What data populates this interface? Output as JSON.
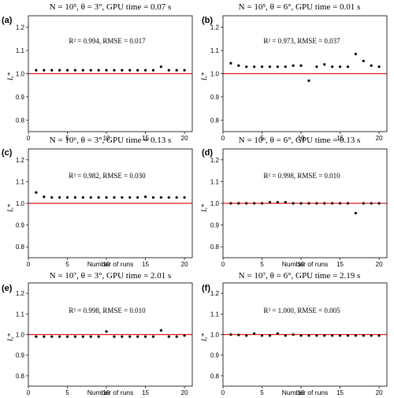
{
  "figure": {
    "panels": [
      {
        "label": "(a)",
        "title": "N = 10⁵, θ = 3°, GPU time = 0.07 s",
        "annotation": "R² = 0.994, RMSE = 0.017",
        "xlabel": "",
        "ylabel": "Iₒ*"
      },
      {
        "label": "(b)",
        "title": "N = 10⁵, θ = 6°, GPU time = 0.01 s",
        "annotation": "R² = 0.973, RMSE = 0.037",
        "xlabel": "",
        "ylabel": "Iₒ*"
      },
      {
        "label": "(c)",
        "title": "N = 10⁶, θ = 3°, GPU time = 0.13 s",
        "annotation": "R² = 0.982, RMSE = 0.030",
        "xlabel": "Number of runs",
        "ylabel": "Iₒ*"
      },
      {
        "label": "(d)",
        "title": "N = 10⁶, θ = 6°, GPU time = 0.13 s",
        "annotation": "R² = 0.998, RMSE = 0.010",
        "xlabel": "Number of runs",
        "ylabel": "Iₒ*"
      },
      {
        "label": "(e)",
        "title": "N = 10⁷, θ = 3°, GPU time = 2.01 s",
        "annotation": "R² = 0.998, RMSE = 0.010",
        "xlabel": "Number of runs",
        "ylabel": "Iₒ*"
      },
      {
        "label": "(f)",
        "title": "N = 10⁷, θ = 6°, GPU time = 2.19 s",
        "annotation": "R² = 1.000, RMSE = 0.005",
        "xlabel": "Number of runs",
        "ylabel": "Iₒ*"
      }
    ],
    "colors": {
      "reference_line": "#e8191c",
      "points": "#000000",
      "axes": "#000000"
    }
  },
  "chart_data": [
    {
      "type": "scatter",
      "title": "N = 10⁵, θ = 3°, GPU time = 0.07 s",
      "xlabel": "",
      "ylabel": "Iₒ*",
      "x": [
        1,
        2,
        3,
        4,
        5,
        6,
        7,
        8,
        9,
        10,
        11,
        12,
        13,
        14,
        15,
        16,
        17,
        18,
        19,
        20
      ],
      "y": [
        1.015,
        1.015,
        1.015,
        1.015,
        1.015,
        1.015,
        1.015,
        1.015,
        1.015,
        1.015,
        1.015,
        1.015,
        1.015,
        1.015,
        1.015,
        1.015,
        1.03,
        1.015,
        1.015,
        1.015
      ],
      "xlim": [
        0,
        21
      ],
      "ylim": [
        0.75,
        1.25
      ],
      "xticks": [
        0,
        5,
        10,
        15,
        20
      ],
      "yticks": [
        0.8,
        0.9,
        1.0,
        1.1,
        1.2
      ],
      "reference_y": 1.0
    },
    {
      "type": "scatter",
      "title": "N = 10⁵, θ = 6°, GPU time = 0.01 s",
      "xlabel": "",
      "ylabel": "Iₒ*",
      "x": [
        1,
        2,
        3,
        4,
        5,
        6,
        7,
        8,
        9,
        10,
        11,
        12,
        13,
        14,
        15,
        16,
        17,
        18,
        19,
        20
      ],
      "y": [
        1.045,
        1.035,
        1.03,
        1.03,
        1.03,
        1.03,
        1.03,
        1.03,
        1.035,
        1.035,
        0.97,
        1.03,
        1.04,
        1.03,
        1.03,
        1.03,
        1.085,
        1.055,
        1.035,
        1.03
      ],
      "xlim": [
        0,
        21
      ],
      "ylim": [
        0.75,
        1.25
      ],
      "xticks": [
        0,
        5,
        10,
        15,
        20
      ],
      "yticks": [
        0.8,
        0.9,
        1.0,
        1.1,
        1.2
      ],
      "reference_y": 1.0
    },
    {
      "type": "scatter",
      "title": "N = 10⁶, θ = 3°, GPU time = 0.13 s",
      "xlabel": "Number of runs",
      "ylabel": "Iₒ*",
      "x": [
        1,
        2,
        3,
        4,
        5,
        6,
        7,
        8,
        9,
        10,
        11,
        12,
        13,
        14,
        15,
        16,
        17,
        18,
        19,
        20
      ],
      "y": [
        1.05,
        1.03,
        1.027,
        1.027,
        1.027,
        1.027,
        1.027,
        1.027,
        1.027,
        1.027,
        1.027,
        1.027,
        1.027,
        1.027,
        1.03,
        1.027,
        1.027,
        1.027,
        1.027,
        1.027
      ],
      "xlim": [
        0,
        21
      ],
      "ylim": [
        0.75,
        1.25
      ],
      "xticks": [
        0,
        5,
        10,
        15,
        20
      ],
      "yticks": [
        0.8,
        0.9,
        1.0,
        1.1,
        1.2
      ],
      "reference_y": 1.0
    },
    {
      "type": "scatter",
      "title": "N = 10⁶, θ = 6°, GPU time = 0.13 s",
      "xlabel": "Number of runs",
      "ylabel": "Iₒ*",
      "x": [
        1,
        2,
        3,
        4,
        5,
        6,
        7,
        8,
        9,
        10,
        11,
        12,
        13,
        14,
        15,
        16,
        17,
        18,
        19,
        20
      ],
      "y": [
        1.0,
        1.0,
        1.0,
        1.0,
        1.0,
        1.005,
        1.005,
        1.005,
        1.0,
        1.0,
        1.0,
        1.0,
        1.0,
        1.0,
        1.0,
        1.0,
        0.955,
        1.0,
        1.0,
        1.0
      ],
      "xlim": [
        0,
        21
      ],
      "ylim": [
        0.75,
        1.25
      ],
      "xticks": [
        0,
        5,
        10,
        15,
        20
      ],
      "yticks": [
        0.8,
        0.9,
        1.0,
        1.1,
        1.2
      ],
      "reference_y": 1.0
    },
    {
      "type": "scatter",
      "title": "N = 10⁷, θ = 3°, GPU time = 2.01 s",
      "xlabel": "Number of runs",
      "ylabel": "Iₒ*",
      "x": [
        1,
        2,
        3,
        4,
        5,
        6,
        7,
        8,
        9,
        10,
        11,
        12,
        13,
        14,
        15,
        16,
        17,
        18,
        19,
        20
      ],
      "y": [
        0.99,
        0.99,
        0.99,
        0.99,
        0.99,
        0.99,
        0.99,
        0.99,
        0.99,
        1.015,
        0.99,
        0.99,
        0.99,
        0.99,
        0.99,
        0.99,
        1.02,
        0.99,
        0.99,
        0.995
      ],
      "xlim": [
        0,
        21
      ],
      "ylim": [
        0.75,
        1.25
      ],
      "xticks": [
        0,
        5,
        10,
        15,
        20
      ],
      "yticks": [
        0.8,
        0.9,
        1.0,
        1.1,
        1.2
      ],
      "reference_y": 1.0
    },
    {
      "type": "scatter",
      "title": "N = 10⁷, θ = 6°, GPU time = 2.19 s",
      "xlabel": "Number of runs",
      "ylabel": "Iₒ*",
      "x": [
        1,
        2,
        3,
        4,
        5,
        6,
        7,
        8,
        9,
        10,
        11,
        12,
        13,
        14,
        15,
        16,
        17,
        18,
        19,
        20
      ],
      "y": [
        1.0,
        0.998,
        0.995,
        1.005,
        0.995,
        0.995,
        1.005,
        0.995,
        1.0,
        0.995,
        0.995,
        0.995,
        0.995,
        0.995,
        0.995,
        0.995,
        0.995,
        0.995,
        0.995,
        0.995
      ],
      "xlim": [
        0,
        21
      ],
      "ylim": [
        0.75,
        1.25
      ],
      "xticks": [
        0,
        5,
        10,
        15,
        20
      ],
      "yticks": [
        0.8,
        0.9,
        1.0,
        1.1,
        1.2
      ],
      "reference_y": 1.0
    }
  ]
}
